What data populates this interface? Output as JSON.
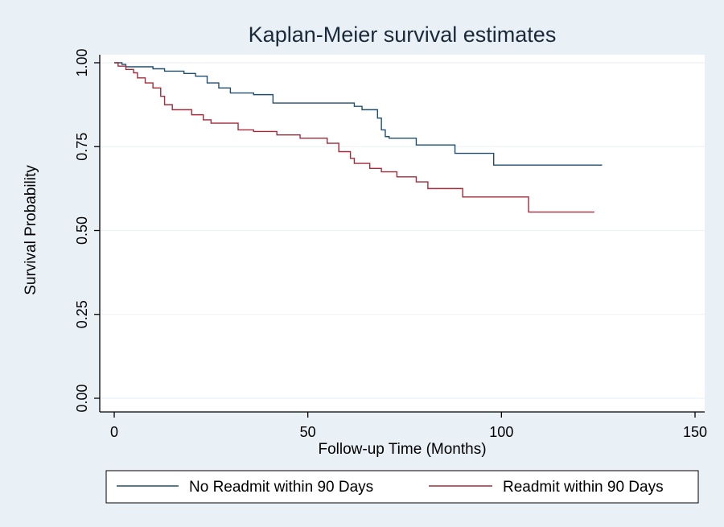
{
  "chart_data": {
    "type": "line",
    "title": "Kaplan-Meier survival estimates",
    "xlabel": "Follow-up Time (Months)",
    "ylabel": "Survival Probability",
    "xlim": [
      0,
      150
    ],
    "ylim": [
      0,
      1
    ],
    "x_ticks": [
      0,
      50,
      100,
      150
    ],
    "x_tick_labels": [
      "0",
      "50",
      "100",
      "150"
    ],
    "y_ticks": [
      0,
      0.25,
      0.5,
      0.75,
      1
    ],
    "y_tick_labels": [
      "0.00",
      "0.25",
      "0.50",
      "0.75",
      "1.00"
    ],
    "grid": true,
    "legend_position": "bottom",
    "series": [
      {
        "name": "No Readmit within 90 Days",
        "color": "#1f4e6f",
        "x": [
          0,
          2,
          3,
          10,
          13,
          18,
          21,
          24,
          27,
          30,
          36,
          41,
          50,
          60,
          62,
          64,
          68,
          69,
          70,
          71,
          78,
          88,
          98,
          126
        ],
        "y": [
          1.0,
          0.995,
          0.988,
          0.982,
          0.975,
          0.968,
          0.96,
          0.94,
          0.925,
          0.91,
          0.905,
          0.88,
          0.88,
          0.88,
          0.87,
          0.86,
          0.835,
          0.8,
          0.78,
          0.775,
          0.755,
          0.73,
          0.695,
          0.695
        ]
      },
      {
        "name": "Readmit within 90 Days",
        "color": "#a52a3a",
        "x": [
          0,
          1,
          3,
          5,
          6,
          8,
          10,
          12,
          13,
          15,
          20,
          23,
          25,
          32,
          36,
          42,
          48,
          55,
          58,
          61,
          62,
          66,
          69,
          73,
          78,
          81,
          90,
          107,
          124
        ],
        "y": [
          1.0,
          0.99,
          0.98,
          0.97,
          0.955,
          0.94,
          0.925,
          0.9,
          0.875,
          0.86,
          0.845,
          0.83,
          0.82,
          0.8,
          0.795,
          0.785,
          0.775,
          0.76,
          0.735,
          0.715,
          0.7,
          0.685,
          0.675,
          0.66,
          0.645,
          0.625,
          0.6,
          0.555,
          0.555
        ]
      }
    ]
  }
}
